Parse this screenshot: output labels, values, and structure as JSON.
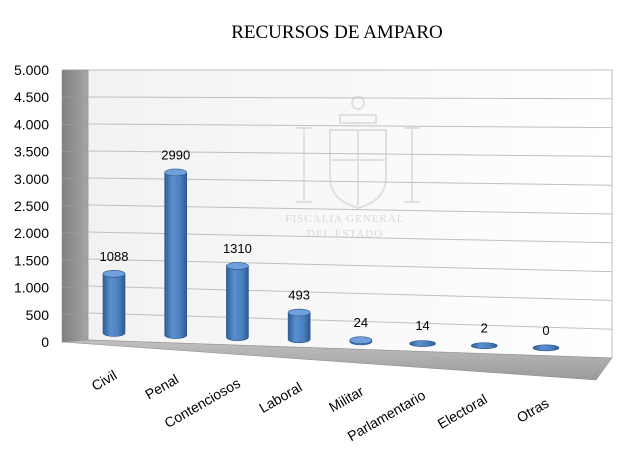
{
  "chart_data": {
    "type": "bar",
    "title": "RECURSOS DE AMPARO",
    "categories": [
      "Civil",
      "Penal",
      "Contenciosos",
      "Laboral",
      "Militar",
      "Parlamentario",
      "Electoral",
      "Otras"
    ],
    "values": [
      1088,
      2990,
      1310,
      493,
      24,
      14,
      2,
      0
    ],
    "data_labels": [
      "1088",
      "2990",
      "1310",
      "493",
      "24",
      "14",
      "2",
      "0"
    ],
    "ylim": [
      0,
      5000
    ],
    "yticks": [
      0,
      500,
      1000,
      1500,
      2000,
      2500,
      3000,
      3500,
      4000,
      4500,
      5000
    ],
    "ytick_labels": [
      "0",
      "500",
      "1.000",
      "1.500",
      "2.000",
      "2.500",
      "3.000",
      "3.500",
      "4.000",
      "4.500",
      "5.000"
    ],
    "grid": true,
    "legend": "none",
    "style": "3d-cylinder",
    "bar_color": "#4f81bd"
  },
  "watermark": {
    "line1": "FISCALIA GENERAL",
    "line2": "DEL ESTADO"
  }
}
